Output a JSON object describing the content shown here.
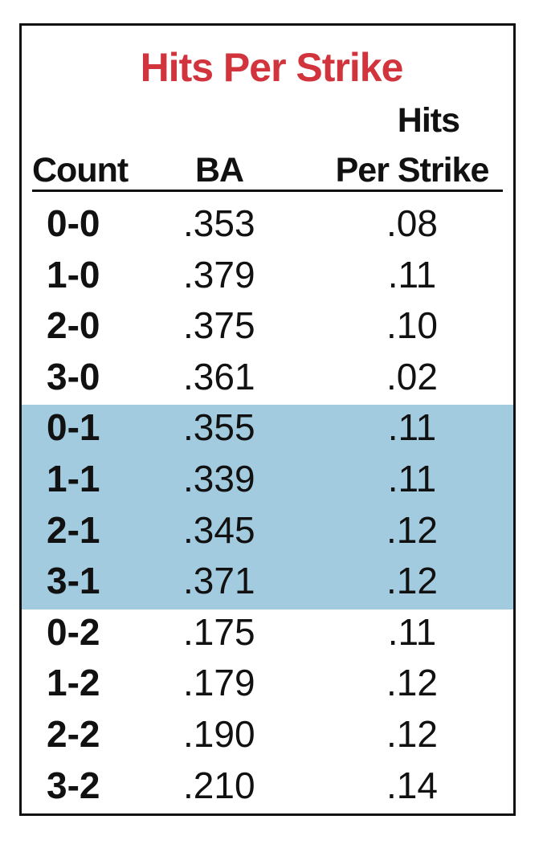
{
  "title": "Hits Per Strike",
  "columns": [
    [
      "Count"
    ],
    [
      "BA"
    ],
    [
      "Hits",
      "Per Strike"
    ]
  ],
  "highlight_color": "#a3cbdf",
  "groups": [
    {
      "highlight": false,
      "rows": [
        [
          "0-0",
          ".353",
          ".08"
        ],
        [
          "1-0",
          ".379",
          ".11"
        ],
        [
          "2-0",
          ".375",
          ".10"
        ],
        [
          "3-0",
          ".361",
          ".02"
        ]
      ]
    },
    {
      "highlight": true,
      "rows": [
        [
          "0-1",
          ".355",
          ".11"
        ],
        [
          "1-1",
          ".339",
          ".11"
        ],
        [
          "2-1",
          ".345",
          ".12"
        ],
        [
          "3-1",
          ".371",
          ".12"
        ]
      ]
    },
    {
      "highlight": false,
      "rows": [
        [
          "0-2",
          ".175",
          ".11"
        ],
        [
          "1-2",
          ".179",
          ".12"
        ],
        [
          "2-2",
          ".190",
          ".12"
        ],
        [
          "3-2",
          ".210",
          ".14"
        ]
      ]
    }
  ]
}
